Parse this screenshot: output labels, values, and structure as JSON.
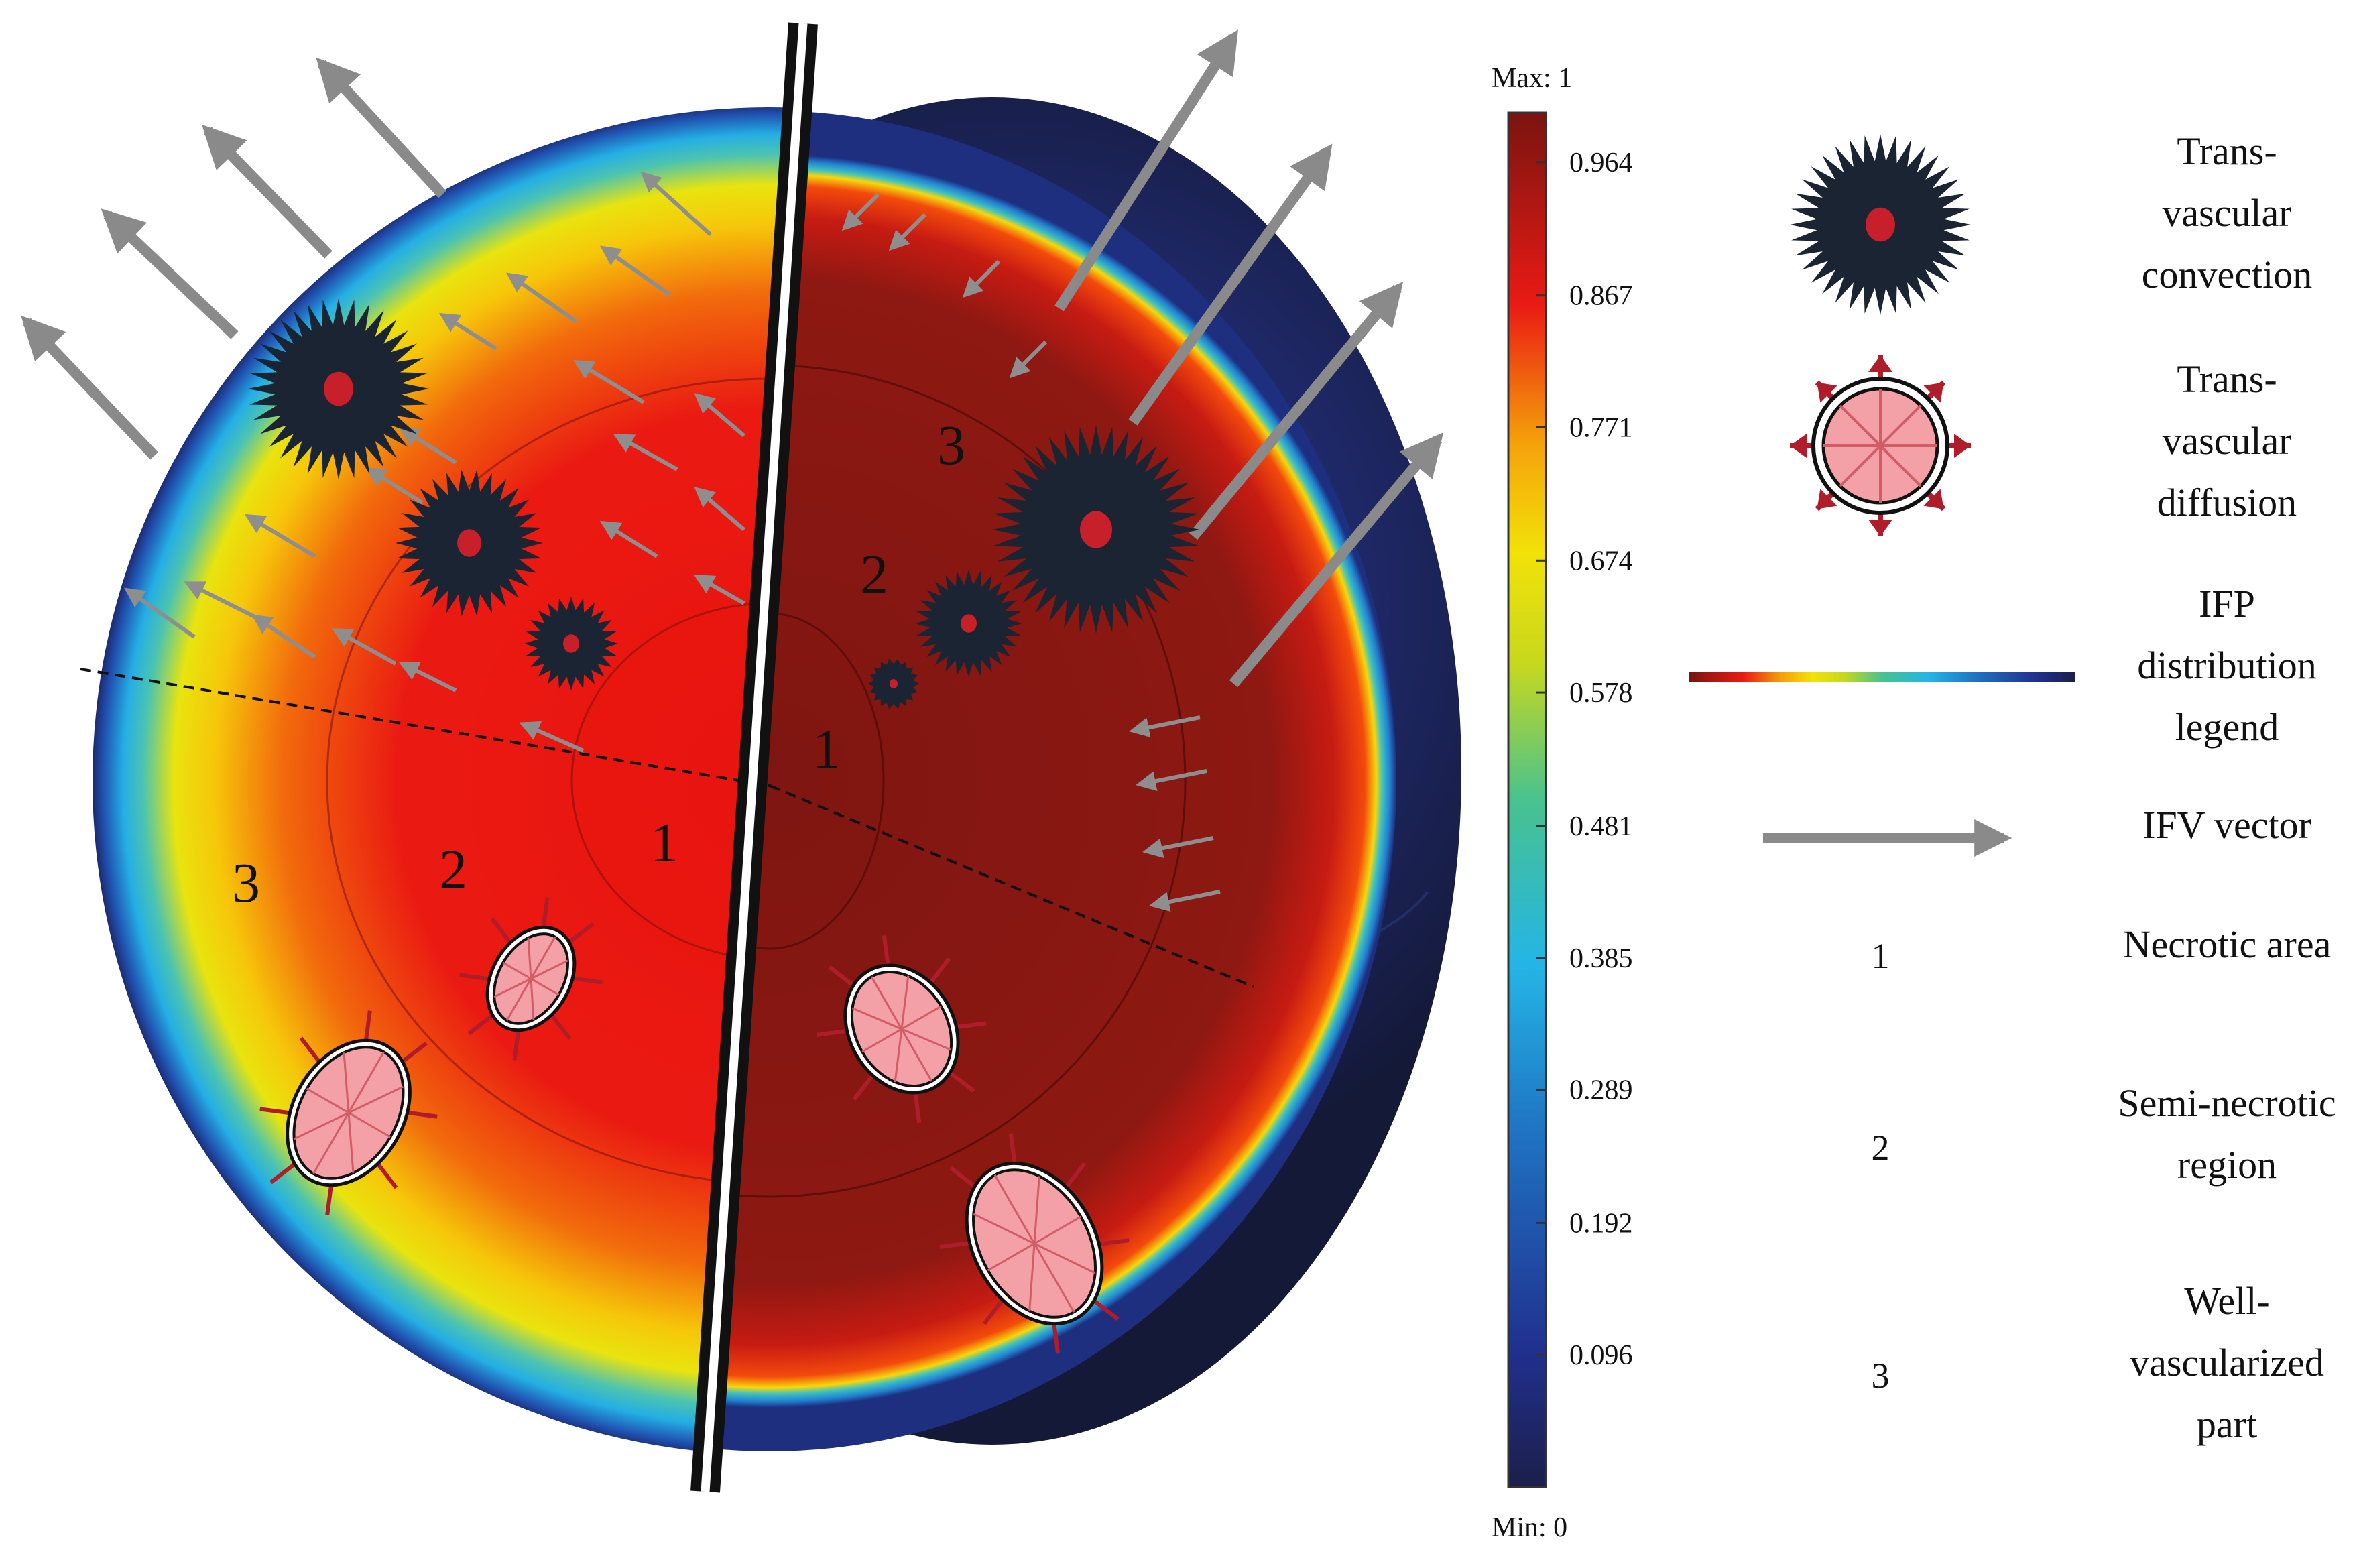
{
  "colorbar": {
    "max_label": "Max: 1",
    "min_label": "Min: 0",
    "range": [
      0,
      1
    ],
    "ticks": [
      0.964,
      0.867,
      0.771,
      0.674,
      0.578,
      0.481,
      0.385,
      0.289,
      0.192,
      0.096
    ],
    "stops": [
      {
        "v": 0.0,
        "color": "#1c1f4a"
      },
      {
        "v": 0.1,
        "color": "#20308f"
      },
      {
        "v": 0.25,
        "color": "#1f6fc0"
      },
      {
        "v": 0.38,
        "color": "#24b5e6"
      },
      {
        "v": 0.5,
        "color": "#48c28e"
      },
      {
        "v": 0.6,
        "color": "#c8d81c"
      },
      {
        "v": 0.68,
        "color": "#f2e208"
      },
      {
        "v": 0.76,
        "color": "#f5a10a"
      },
      {
        "v": 0.86,
        "color": "#ea1a14"
      },
      {
        "v": 1.0,
        "color": "#7a1410"
      }
    ]
  },
  "regions": {
    "left": [
      "3",
      "2",
      "1"
    ],
    "right": [
      "3",
      "2",
      "1"
    ]
  },
  "legend": {
    "items": [
      {
        "symbol": "",
        "label": "Trans-\nvascular\nconvection"
      },
      {
        "symbol": "",
        "label": "Trans-\nvascular\ndiffusion"
      },
      {
        "symbol": "",
        "label": "IFP\ndistribution\nlegend"
      },
      {
        "symbol": "",
        "label": "IFV vector"
      },
      {
        "symbol": "1",
        "label": "Necrotic area"
      },
      {
        "symbol": "2",
        "label": "Semi-necrotic\nregion"
      },
      {
        "symbol": "3",
        "label": "Well-\nvascularized\npart"
      }
    ]
  },
  "colors": {
    "dark_navy": "#1b2433",
    "vessel_red": "#c8202a",
    "diffusion_pink": "#f3a1a6",
    "arrow_gray": "#8a8a8a",
    "hot_red": "#e8130f",
    "dark_red": "#8b1612"
  }
}
